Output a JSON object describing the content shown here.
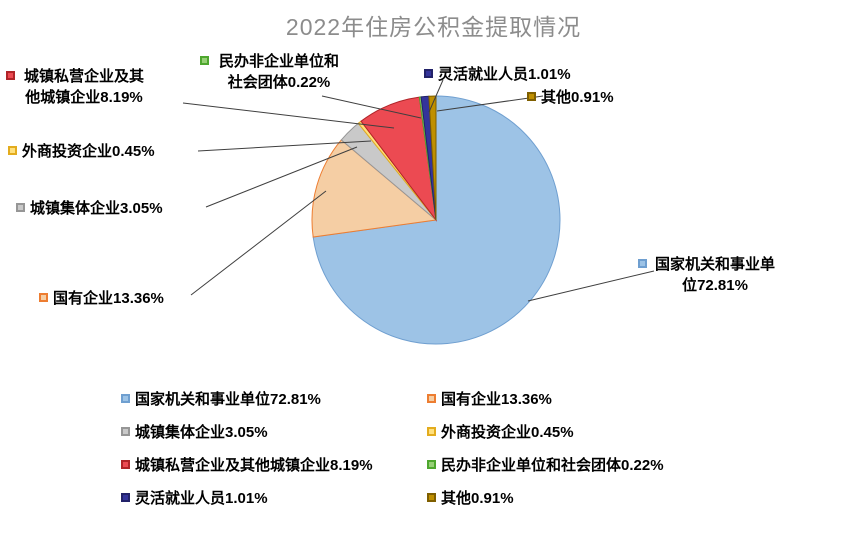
{
  "title": "2022年住房公积金提取情况",
  "chart_data": {
    "type": "pie",
    "title": "2022年住房公积金提取情况",
    "start_angle_deg": 0,
    "direction": "clockwise",
    "total": 100,
    "legend": {
      "position": "bottom",
      "columns": 2,
      "visible": true
    },
    "data_labels": "category name + percent with leader lines",
    "series": [
      {
        "label": "国家机关和事业单位",
        "value": 72.81,
        "pct": "72.81%",
        "fill": "#9DC3E6",
        "border": "#6F9FD0"
      },
      {
        "label": "国有企业",
        "value": 13.36,
        "pct": "13.36%",
        "fill": "#F5CEA4",
        "border": "#ED7D31"
      },
      {
        "label": "城镇集体企业",
        "value": 3.05,
        "pct": "3.05%",
        "fill": "#C9C9C9",
        "border": "#969696"
      },
      {
        "label": "外商投资企业",
        "value": 0.45,
        "pct": "0.45%",
        "fill": "#FFE07D",
        "border": "#E3AC1E"
      },
      {
        "label": "城镇私营企业及其他城镇企业",
        "value": 8.19,
        "pct": "8.19%",
        "fill": "#EC4A52",
        "border": "#B02428"
      },
      {
        "label": "民办非企业单位和社会团体",
        "value": 0.22,
        "pct": "0.22%",
        "fill": "#97D077",
        "border": "#4EA72E"
      },
      {
        "label": "灵活就业人员",
        "value": 1.01,
        "pct": "1.01%",
        "fill": "#34349B",
        "border": "#222269"
      },
      {
        "label": "其他",
        "value": 0.91,
        "pct": "0.91%",
        "fill": "#BF8F00",
        "border": "#7F5F00"
      }
    ]
  }
}
